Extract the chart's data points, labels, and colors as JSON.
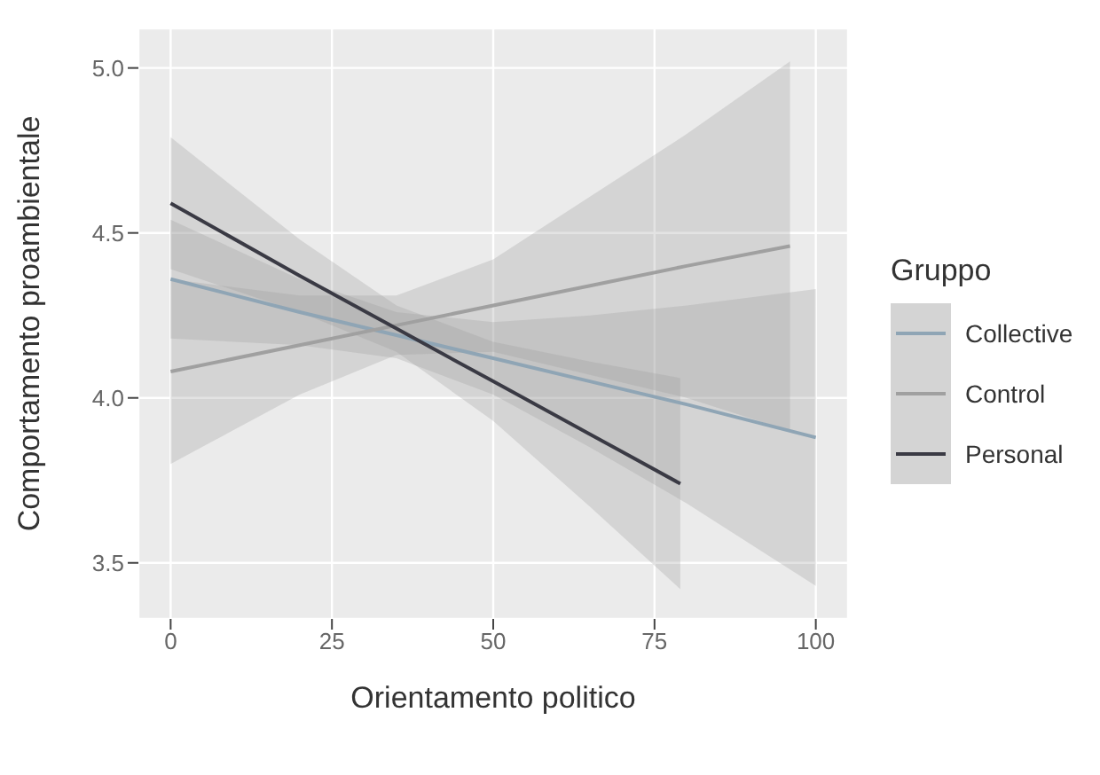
{
  "chart_data": {
    "type": "line",
    "xlabel": "Orientamento politico",
    "ylabel": "Comportamento proambientale",
    "legend_title": "Gruppo",
    "xlim": [
      -5,
      105
    ],
    "ylim": [
      3.33,
      5.12
    ],
    "xticks": [
      0,
      25,
      50,
      75,
      100
    ],
    "yticks": [
      {
        "value": 3.5,
        "label": "3.5"
      },
      {
        "value": 4,
        "label": "4.0"
      },
      {
        "value": 4.5,
        "label": "4.5"
      },
      {
        "value": 5,
        "label": "5.0"
      }
    ],
    "grid": true,
    "legend": "right",
    "series": [
      {
        "name": "Collective",
        "color": "#8fa5b5",
        "x": [
          0,
          20,
          35,
          50,
          65,
          80,
          100
        ],
        "values": [
          4.36,
          4.26,
          4.19,
          4.12,
          4.05,
          3.98,
          3.88
        ],
        "lower": [
          4.18,
          4.16,
          4.12,
          4.01,
          3.85,
          3.68,
          3.43
        ],
        "upper": [
          4.54,
          4.36,
          4.26,
          4.23,
          4.25,
          4.28,
          4.33
        ]
      },
      {
        "name": "Control",
        "color": "#a0a0a0",
        "x": [
          0,
          20,
          35,
          50,
          65,
          80,
          96
        ],
        "values": [
          4.08,
          4.16,
          4.22,
          4.28,
          4.34,
          4.4,
          4.46
        ],
        "lower": [
          3.8,
          4.01,
          4.13,
          4.14,
          4.07,
          4.0,
          3.9
        ],
        "upper": [
          4.36,
          4.31,
          4.31,
          4.42,
          4.61,
          4.8,
          5.02
        ]
      },
      {
        "name": "Personal",
        "color": "#3a3a44",
        "x": [
          0,
          20,
          35,
          50,
          65,
          79
        ],
        "values": [
          4.59,
          4.37,
          4.21,
          4.05,
          3.89,
          3.74
        ],
        "lower": [
          4.39,
          4.26,
          4.14,
          3.93,
          3.67,
          3.42
        ],
        "upper": [
          4.79,
          4.48,
          4.28,
          4.17,
          4.11,
          4.06
        ]
      }
    ]
  }
}
